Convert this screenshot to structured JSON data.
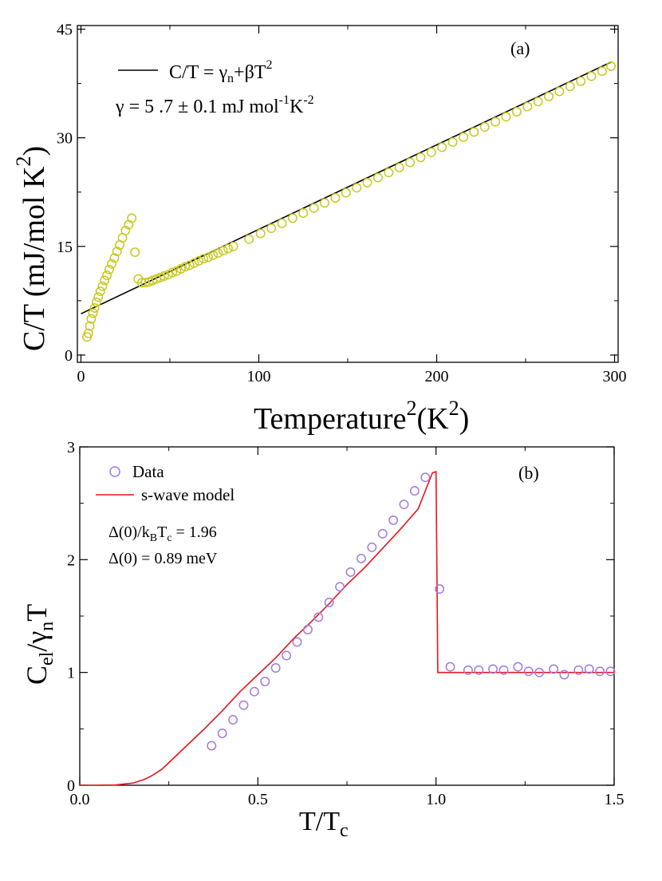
{
  "chart_data": [
    {
      "type": "scatter",
      "panel_label": "(a)",
      "xlabel": {
        "main": "Temperature",
        "sup": "2",
        "unit_open": "(K",
        "unit_sup": "2",
        "unit_close": ")"
      },
      "ylabel": {
        "main": "C/T (mJ/mol K",
        "sup": "2",
        "close": ")"
      },
      "xlim": [
        -2,
        302
      ],
      "ylim": [
        -1,
        45.5
      ],
      "xticks": [
        0,
        100,
        200,
        300
      ],
      "yticks": [
        0,
        15,
        30,
        45
      ],
      "legend": {
        "fit_label": {
          "a": "C/T = γ",
          "b": "n",
          "c": "+βT",
          "d": "2"
        },
        "gamma_text": {
          "a": "γ =  5 .7 ± 0.1 mJ mol",
          "b": "-1",
          "c": "K",
          "d": "-2"
        }
      },
      "series": [
        {
          "kind": "markers",
          "color": "#c8c81e",
          "x": [
            3.4,
            4.2,
            5.0,
            5.8,
            6.8,
            7.7,
            8.7,
            9.8,
            10.9,
            12.1,
            13.3,
            14.6,
            15.9,
            17.3,
            18.8,
            20.3,
            21.8,
            23.4,
            25.1,
            26.8,
            28.6,
            30.4,
            32.2,
            34.2,
            36.2,
            38.2,
            40.3,
            42.4,
            44.6,
            46.8,
            49.1,
            51.4,
            53.8,
            56.2,
            58.6,
            61.1,
            63.7,
            66.3,
            68.9,
            71.6,
            74.3,
            77.1,
            79.9,
            82.8,
            85.7,
            94.5,
            101.0,
            107.0,
            113.0,
            119.0,
            125.0,
            131.0,
            137.0,
            143.0,
            149.0,
            155.0,
            161.0,
            167.0,
            173.0,
            179.0,
            185.0,
            191.0,
            197.0,
            203.0,
            209.0,
            215.0,
            221.0,
            227.0,
            233.0,
            239.0,
            245.0,
            251.0,
            257.0,
            263.0,
            269.0,
            275.0,
            281.0,
            287.0,
            293.0,
            298.0
          ],
          "y": [
            2.5,
            3.0,
            4.0,
            5.0,
            5.8,
            6.5,
            7.3,
            8.0,
            8.8,
            9.5,
            10.3,
            11.0,
            11.8,
            12.6,
            13.4,
            14.3,
            15.2,
            16.2,
            17.2,
            18.0,
            18.9,
            14.2,
            10.5,
            10.0,
            10.0,
            10.1,
            10.3,
            10.5,
            10.7,
            10.9,
            11.1,
            11.4,
            11.6,
            11.9,
            12.2,
            12.4,
            12.7,
            13.0,
            13.3,
            13.5,
            13.8,
            14.1,
            14.4,
            14.7,
            15.0,
            16.0,
            16.8,
            17.5,
            18.2,
            18.9,
            19.6,
            20.3,
            21.0,
            21.7,
            22.4,
            23.1,
            23.8,
            24.5,
            25.2,
            25.9,
            26.6,
            27.3,
            28.0,
            28.7,
            29.4,
            30.1,
            30.8,
            31.5,
            32.2,
            32.9,
            33.6,
            34.3,
            35.0,
            35.7,
            36.4,
            37.1,
            37.8,
            38.5,
            39.2,
            39.9
          ]
        },
        {
          "kind": "line",
          "color": "#000000",
          "x": [
            0,
            298
          ],
          "y": [
            5.7,
            40.45
          ]
        }
      ]
    },
    {
      "type": "scatter",
      "panel_label": "(b)",
      "xlabel": {
        "main": "T/T",
        "sub": "c"
      },
      "ylabel": {
        "a": "C",
        "b": "el",
        "c": "/γ",
        "d": "n",
        "e": "T"
      },
      "xlim": [
        0,
        1.5
      ],
      "ylim": [
        0,
        3
      ],
      "xticks": [
        "0.0",
        "0.5",
        "1.0",
        "1.5"
      ],
      "yticks": [
        "0",
        "1",
        "2",
        "3"
      ],
      "legend": {
        "data_label": "Data",
        "model_label": "s-wave model",
        "gap_ratio": {
          "a": "Δ(0)/k",
          "b": "B",
          "c": "T",
          "d": "c",
          "e": " = 1.96"
        },
        "gap_value": "Δ(0) = 0.89 meV"
      },
      "series": [
        {
          "kind": "markers",
          "color": "#a07be0",
          "x": [
            0.37,
            0.4,
            0.43,
            0.46,
            0.49,
            0.52,
            0.55,
            0.58,
            0.61,
            0.64,
            0.67,
            0.7,
            0.73,
            0.76,
            0.79,
            0.82,
            0.85,
            0.88,
            0.91,
            0.94,
            0.97,
            1.01,
            1.04,
            1.09,
            1.12,
            1.16,
            1.19,
            1.23,
            1.26,
            1.29,
            1.33,
            1.36,
            1.4,
            1.43,
            1.46,
            1.49
          ],
          "y": [
            0.35,
            0.46,
            0.58,
            0.71,
            0.83,
            0.92,
            1.04,
            1.15,
            1.27,
            1.38,
            1.49,
            1.62,
            1.76,
            1.89,
            2.01,
            2.11,
            2.23,
            2.35,
            2.49,
            2.61,
            2.73,
            1.74,
            1.05,
            1.02,
            1.02,
            1.03,
            1.02,
            1.05,
            1.01,
            1.0,
            1.03,
            0.98,
            1.02,
            1.03,
            1.01,
            1.01
          ]
        },
        {
          "kind": "line",
          "color": "#e8141e",
          "x": [
            0,
            0.05,
            0.1,
            0.15,
            0.18,
            0.2,
            0.23,
            0.26,
            0.3,
            0.35,
            0.4,
            0.45,
            0.5,
            0.55,
            0.6,
            0.65,
            0.7,
            0.75,
            0.8,
            0.85,
            0.9,
            0.95,
            0.99,
            1.0,
            1.005,
            1.5
          ],
          "y": [
            0,
            0,
            0.002,
            0.02,
            0.05,
            0.08,
            0.14,
            0.23,
            0.35,
            0.5,
            0.66,
            0.83,
            0.98,
            1.13,
            1.3,
            1.45,
            1.61,
            1.78,
            1.93,
            2.1,
            2.27,
            2.45,
            2.77,
            2.78,
            1.0,
            1.0
          ]
        }
      ]
    }
  ]
}
